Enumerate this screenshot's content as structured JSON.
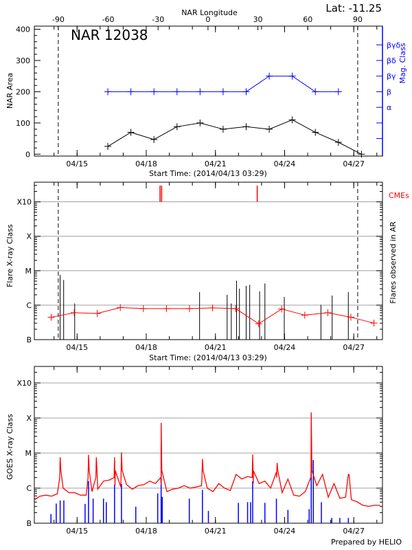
{
  "chart_data": [
    {
      "type": "line",
      "title": "NAR 12038",
      "annotation": "Lat: -11.25",
      "xlabel": "Start Time: (2014/04/13 03:29)",
      "top_xlabel": "NAR Longitude",
      "ylabel": "NAR Area",
      "right_ylabel": "Mag. Class",
      "xlim": [
        "2014-04-13T03:29",
        "2014-04-28T05:53"
      ],
      "ylim": [
        -6,
        410
      ],
      "x_tick_labels": [
        {
          "t": "2014-04-15T00:00",
          "label": "04/15"
        },
        {
          "t": "2014-04-18T00:00",
          "label": "04/18"
        },
        {
          "t": "2014-04-21T00:00",
          "label": "04/21"
        },
        {
          "t": "2014-04-24T00:00",
          "label": "04/24"
        },
        {
          "t": "2014-04-27T00:00",
          "label": "04/27"
        }
      ],
      "y_ticks": [
        0,
        100,
        200,
        300,
        400
      ],
      "y_tick_labels": [
        "0",
        "100",
        "200",
        "300",
        "400"
      ],
      "longitude_range": [
        -104.4,
        104.9
      ],
      "longitude_ticks": [
        -90,
        -60,
        -30,
        0,
        30,
        60,
        90
      ],
      "longitude_tick_labels": [
        "-90",
        "-60",
        "-30",
        "0",
        "30",
        "60",
        "90"
      ],
      "limb_longitudes": [
        -90,
        90
      ],
      "mag_class_labels": [
        "α",
        "β",
        "βγ",
        "βδ",
        "βγδ"
      ],
      "series": [
        {
          "color": "#000000",
          "points": [
            {
              "t": "2014-04-16T08:00",
              "v": 25
            },
            {
              "t": "2014-04-17T08:00",
              "v": 70
            },
            {
              "t": "2014-04-18T08:00",
              "v": 47
            },
            {
              "t": "2014-04-19T08:00",
              "v": 88
            },
            {
              "t": "2014-04-20T08:00",
              "v": 100
            },
            {
              "t": "2014-04-21T08:00",
              "v": 80
            },
            {
              "t": "2014-04-22T08:00",
              "v": 88
            },
            {
              "t": "2014-04-23T08:00",
              "v": 80
            },
            {
              "t": "2014-04-24T08:00",
              "v": 110
            },
            {
              "t": "2014-04-25T08:00",
              "v": 70
            },
            {
              "t": "2014-04-26T08:00",
              "v": 38
            },
            {
              "t": "2014-04-27T08:00",
              "v": 0
            }
          ]
        },
        {
          "color": "#0000ff",
          "points": [
            {
              "t": "2014-04-16T08:00",
              "class": "β"
            },
            {
              "t": "2014-04-17T08:00",
              "class": "β"
            },
            {
              "t": "2014-04-18T08:00",
              "class": "β"
            },
            {
              "t": "2014-04-19T08:00",
              "class": "β"
            },
            {
              "t": "2014-04-20T08:00",
              "class": "β"
            },
            {
              "t": "2014-04-21T08:00",
              "class": "β"
            },
            {
              "t": "2014-04-22T08:00",
              "class": "β"
            },
            {
              "t": "2014-04-23T08:00",
              "class": "βγ"
            },
            {
              "t": "2014-04-24T08:00",
              "class": "βγ"
            },
            {
              "t": "2014-04-25T08:00",
              "class": "β"
            },
            {
              "t": "2014-04-26T08:00",
              "class": "β"
            }
          ]
        }
      ]
    },
    {
      "type": "bar",
      "xlabel": "Start Time: (2014/04/13 03:29)",
      "ylabel": "Flare X-ray Class",
      "right_ylabel": "Flares observed in AR",
      "cme_label": "CMEs",
      "xlim": [
        "2014-04-13T03:29",
        "2014-04-28T05:53"
      ],
      "ylim": [
        0,
        4.57
      ],
      "y_tick_labels": [
        "B",
        "C",
        "M",
        "X",
        "X10"
      ],
      "grid": true,
      "limb_longitudes": [
        -90,
        90
      ],
      "colors": {
        "flares": "#000000",
        "average": "#ff0000",
        "cmes": "#ff0000",
        "grid": "#a0a0a0"
      },
      "flares": [
        {
          "t": "2014-04-14T06:22",
          "v": 1.88
        },
        {
          "t": "2014-04-14T10:00",
          "v": 1.73
        },
        {
          "t": "2014-04-14T21:30",
          "v": 1.05
        },
        {
          "t": "2014-04-20T07:30",
          "v": 1.38
        },
        {
          "t": "2014-04-21T12:10",
          "v": 1.3
        },
        {
          "t": "2014-04-21T16:30",
          "v": 1.05
        },
        {
          "t": "2014-04-21T22:00",
          "v": 1.71
        },
        {
          "t": "2014-04-22T01:00",
          "v": 1.48
        },
        {
          "t": "2014-04-22T08:00",
          "v": 1.56
        },
        {
          "t": "2014-04-22T11:40",
          "v": 1.59
        },
        {
          "t": "2014-04-22T22:00",
          "v": 1.4
        },
        {
          "t": "2014-04-23T03:30",
          "v": 1.63
        },
        {
          "t": "2014-04-23T23:40",
          "v": 1.24
        },
        {
          "t": "2014-04-25T13:50",
          "v": 1.01
        },
        {
          "t": "2014-04-26T01:30",
          "v": 1.28
        },
        {
          "t": "2014-04-26T18:20",
          "v": 1.38
        }
      ],
      "average": [
        {
          "t": "2014-04-13T21:00",
          "v": 0.65
        },
        {
          "t": "2014-04-14T21:00",
          "v": 0.78
        },
        {
          "t": "2014-04-15T21:00",
          "v": 0.76
        },
        {
          "t": "2014-04-16T21:00",
          "v": 0.93
        },
        {
          "t": "2014-04-17T21:00",
          "v": 0.9
        },
        {
          "t": "2014-04-18T21:00",
          "v": 0.9
        },
        {
          "t": "2014-04-19T21:00",
          "v": 0.9
        },
        {
          "t": "2014-04-20T21:00",
          "v": 0.92
        },
        {
          "t": "2014-04-21T21:00",
          "v": 0.9
        },
        {
          "t": "2014-04-22T21:00",
          "v": 0.46
        },
        {
          "t": "2014-04-23T21:00",
          "v": 0.89
        },
        {
          "t": "2014-04-24T21:00",
          "v": 0.71
        },
        {
          "t": "2014-04-25T21:00",
          "v": 0.78
        },
        {
          "t": "2014-04-26T21:00",
          "v": 0.65
        },
        {
          "t": "2014-04-27T21:00",
          "v": 0.48
        }
      ],
      "cmes": [
        "2014-04-18T14:20",
        "2014-04-18T16:00",
        "2014-04-22T19:30"
      ]
    },
    {
      "type": "line",
      "ylabel": "GOES X-ray Class",
      "footer": "Prepared by HELIO",
      "xlim": [
        "2014-04-13T03:29",
        "2014-04-28T05:53"
      ],
      "ylim": [
        0,
        4.47
      ],
      "y_tick_labels": [
        "B",
        "C",
        "M",
        "X",
        "X10"
      ],
      "grid": true,
      "colors": {
        "long": "#ff0000",
        "short": "#0000ff",
        "grid": "#a0a0a0"
      },
      "long_channel": {
        "start": "2014-04-13T03:29",
        "step_hours": 6,
        "values": [
          0.67,
          0.77,
          0.8,
          0.77,
          0.84,
          1.0,
          0.87,
          0.87,
          0.8,
          0.8,
          0.9,
          0.97,
          1.2,
          1.23,
          1.07,
          1.03,
          1.1,
          0.97,
          1.07,
          1.1,
          1.2,
          1.13,
          1.1,
          0.9,
          0.97,
          1.0,
          1.07,
          1.0,
          1.03,
          1.07,
          1.0,
          0.9,
          1.13,
          1.0,
          0.93,
          1.39,
          1.26,
          1.33,
          1.13,
          1.13,
          1.2,
          1.0,
          1.46,
          0.87,
          1.26,
          0.8,
          0.77,
          0.9,
          1.3,
          1.07,
          1.39,
          0.74,
          1.13,
          0.71,
          0.74,
          0.67,
          0.61,
          0.51,
          0.48,
          0.51,
          0.51
        ],
        "peaks": [
          {
            "t": "2014-04-14T06:22",
            "v": 1.88
          },
          {
            "t": "2014-04-15T11:53",
            "v": 1.95
          },
          {
            "t": "2014-04-15T20:00",
            "v": 1.88
          },
          {
            "t": "2014-04-16T14:59",
            "v": 1.88
          },
          {
            "t": "2014-04-16T22:12",
            "v": 2.02
          },
          {
            "t": "2014-04-18T15:29",
            "v": 2.86
          },
          {
            "t": "2014-04-20T10:27",
            "v": 1.83
          },
          {
            "t": "2014-04-22T14:46",
            "v": 1.96
          },
          {
            "t": "2014-04-23T16:12",
            "v": 1.72
          },
          {
            "t": "2014-04-25T03:43",
            "v": 3.16
          },
          {
            "t": "2014-04-26T18:22",
            "v": 1.39
          }
        ]
      },
      "short_channel": [
        {
          "t": "2014-04-13T20:48",
          "v": 0.26
        },
        {
          "t": "2014-04-14T02:17",
          "v": 0.56
        },
        {
          "t": "2014-04-14T06:22",
          "v": 0.65
        },
        {
          "t": "2014-04-14T10:12",
          "v": 0.65
        },
        {
          "t": "2014-04-15T08:17",
          "v": 0.55
        },
        {
          "t": "2014-04-15T11:53",
          "v": 1.2
        },
        {
          "t": "2014-04-15T16:41",
          "v": 0.7
        },
        {
          "t": "2014-04-16T03:29",
          "v": 0.7
        },
        {
          "t": "2014-04-16T06:22",
          "v": 0.6
        },
        {
          "t": "2014-04-16T14:59",
          "v": 1.1
        },
        {
          "t": "2014-04-16T22:12",
          "v": 1.12
        },
        {
          "t": "2014-04-17T13:05",
          "v": 0.47
        },
        {
          "t": "2014-04-18T11:53",
          "v": 0.85
        },
        {
          "t": "2014-04-18T15:29",
          "v": 2.18
        },
        {
          "t": "2014-04-18T16:41",
          "v": 0.75
        },
        {
          "t": "2014-04-19T20:48",
          "v": 0.7
        },
        {
          "t": "2014-04-20T10:27",
          "v": 0.95
        },
        {
          "t": "2014-04-20T16:41",
          "v": 0.35
        },
        {
          "t": "2014-04-21T23:53",
          "v": 0.58
        },
        {
          "t": "2014-04-22T09:29",
          "v": 0.6
        },
        {
          "t": "2014-04-22T12:36",
          "v": 0.6
        },
        {
          "t": "2014-04-22T14:46",
          "v": 1.2
        },
        {
          "t": "2014-04-23T03:29",
          "v": 0.58
        },
        {
          "t": "2014-04-23T15:29",
          "v": 0.7
        },
        {
          "t": "2014-04-24T03:29",
          "v": 0.38
        },
        {
          "t": "2014-04-25T01:34",
          "v": 0.4
        },
        {
          "t": "2014-04-25T03:43",
          "v": 2.67
        },
        {
          "t": "2014-04-25T05:53",
          "v": 1.8
        },
        {
          "t": "2014-04-25T14:17",
          "v": 0.6
        },
        {
          "t": "2014-04-26T01:05",
          "v": 0.15
        },
        {
          "t": "2014-04-26T09:29",
          "v": 0.15
        },
        {
          "t": "2014-04-26T18:22",
          "v": 0.15
        }
      ]
    }
  ]
}
